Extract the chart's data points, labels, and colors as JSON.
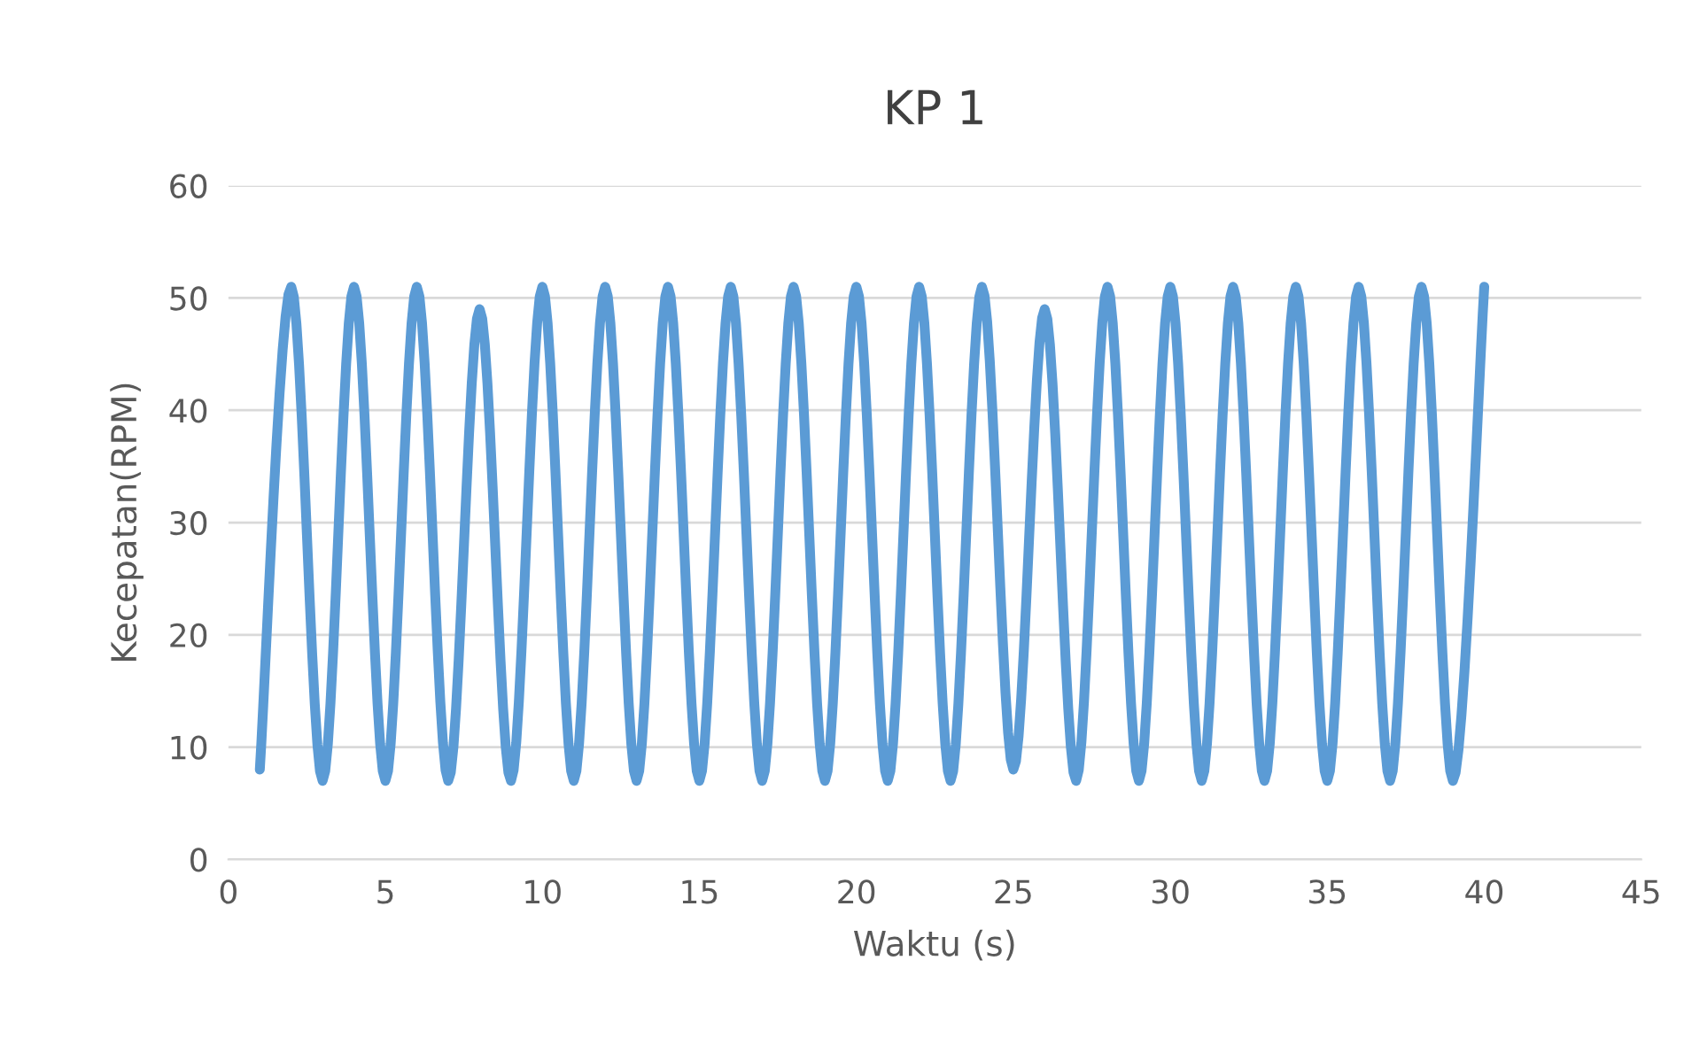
{
  "chart_data": {
    "type": "line",
    "title": "KP 1",
    "xlabel": "Waktu (s)",
    "ylabel": "Kecepatan(RPM)",
    "x": [
      1,
      2,
      3,
      4,
      5,
      6,
      7,
      8,
      9,
      10,
      11,
      12,
      13,
      14,
      15,
      16,
      17,
      18,
      19,
      20,
      21,
      22,
      23,
      24,
      25,
      26,
      27,
      28,
      29,
      30,
      31,
      32,
      33,
      34,
      35,
      36,
      37,
      38,
      39,
      40
    ],
    "series": [
      {
        "color": "#5b9bd5",
        "values": [
          8,
          51,
          7,
          51,
          7,
          51,
          7,
          49,
          7,
          51,
          7,
          51,
          7,
          51,
          7,
          51,
          7,
          51,
          7,
          51,
          7,
          51,
          7,
          51,
          8,
          49,
          7,
          51,
          7,
          51,
          7,
          51,
          7,
          51,
          7,
          51,
          7,
          51,
          7,
          51
        ]
      }
    ],
    "xlim": [
      0,
      45
    ],
    "xticks": [
      0,
      5,
      10,
      15,
      20,
      25,
      30,
      35,
      40,
      45
    ],
    "ylim": [
      0,
      60
    ],
    "yticks": [
      0,
      10,
      20,
      30,
      40,
      50,
      60
    ],
    "grid": "y",
    "marker": "none",
    "line_style": "solid"
  }
}
